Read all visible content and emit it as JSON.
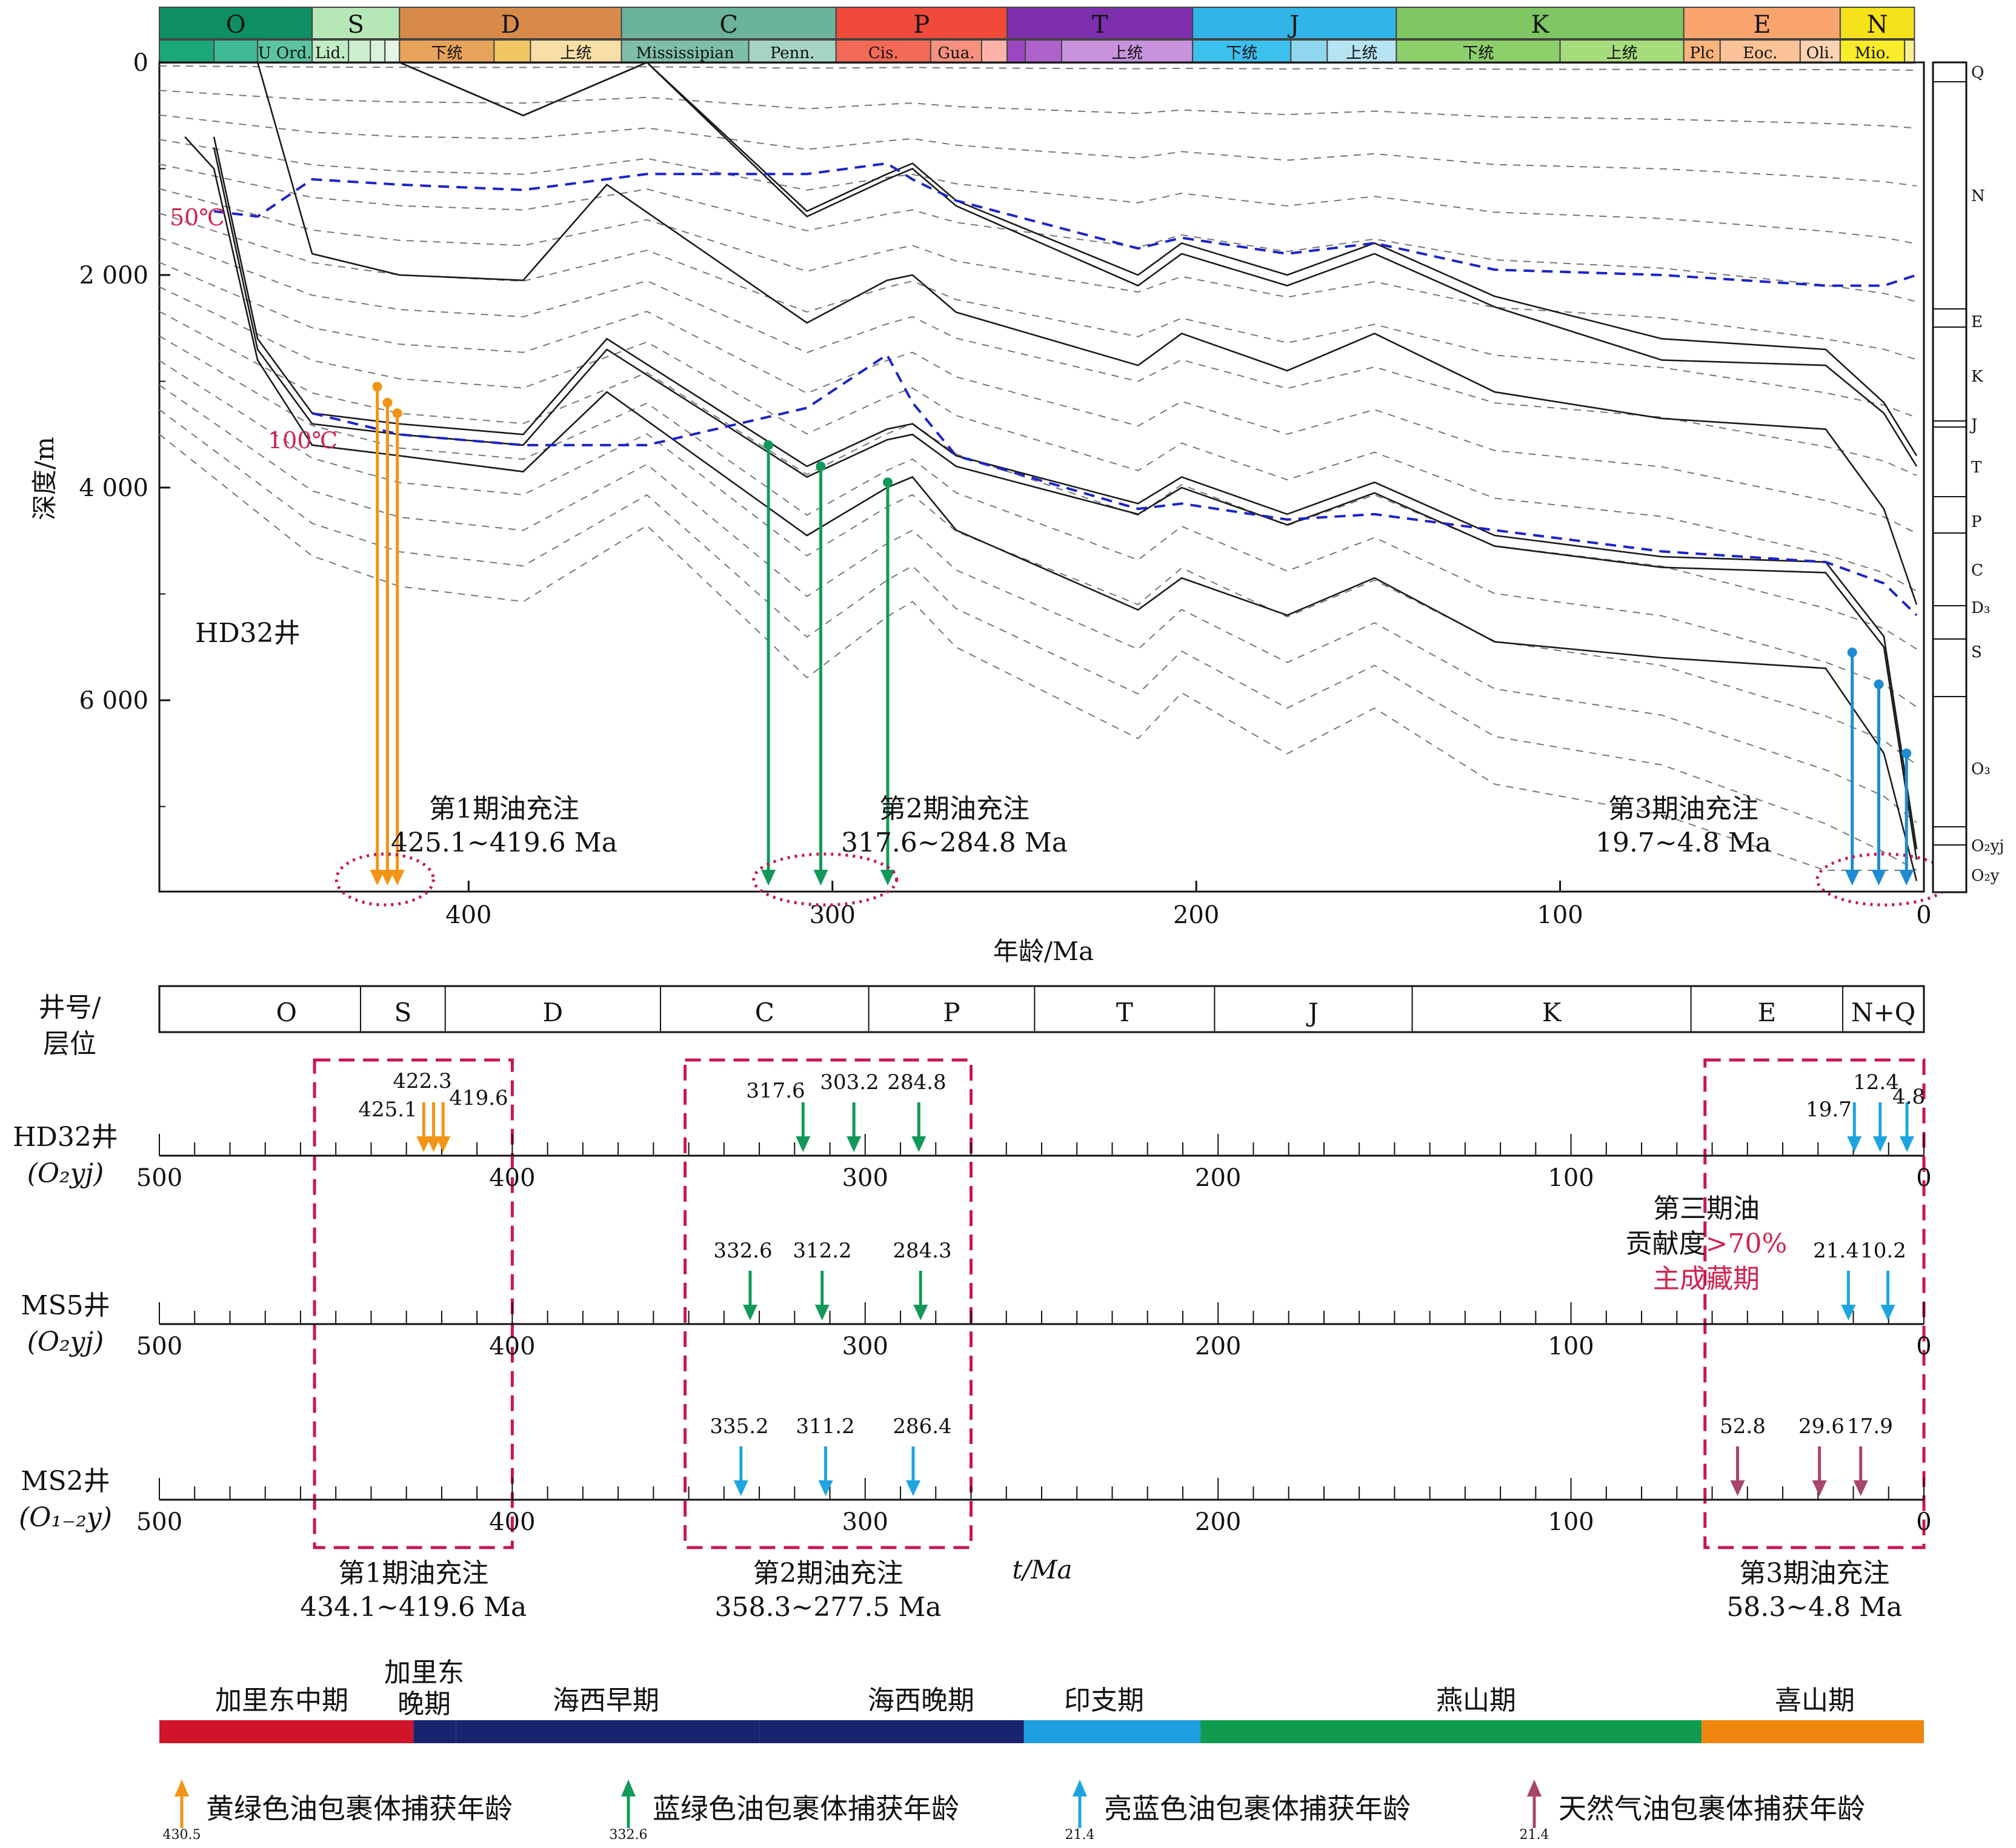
{
  "upper": {
    "periods": [
      {
        "label": "O",
        "start": 485,
        "end": 443,
        "color": "#0d8f62"
      },
      {
        "label": "S",
        "start": 443,
        "end": 419,
        "color": "#b6e8b7"
      },
      {
        "label": "D",
        "start": 419,
        "end": 358,
        "color": "#d88a4a"
      },
      {
        "label": "C",
        "start": 358,
        "end": 299,
        "color": "#6bb39b"
      },
      {
        "label": "P",
        "start": 299,
        "end": 252,
        "color": "#f04a3a"
      },
      {
        "label": "T",
        "start": 252,
        "end": 201,
        "color": "#7d2fad"
      },
      {
        "label": "J",
        "start": 201,
        "end": 145,
        "color": "#32b5e8"
      },
      {
        "label": "K",
        "start": 145,
        "end": 66,
        "color": "#7fc762"
      },
      {
        "label": "E",
        "start": 66,
        "end": 23,
        "color": "#f9a46c"
      },
      {
        "label": "N",
        "start": 23,
        "end": 2.6,
        "color": "#f5e21a"
      }
    ],
    "subperiods": [
      {
        "label": "",
        "start": 485,
        "end": 470,
        "color": "#1aa77a"
      },
      {
        "label": "",
        "start": 470,
        "end": 458,
        "color": "#3fb894"
      },
      {
        "label": "U Ord.",
        "start": 458,
        "end": 443,
        "color": "#5cc4a1"
      },
      {
        "label": "Lid.",
        "start": 443,
        "end": 433,
        "color": "#c2ecc4"
      },
      {
        "label": "",
        "start": 433,
        "end": 427,
        "color": "#cdefcf"
      },
      {
        "label": "",
        "start": 427,
        "end": 423,
        "color": "#d8f2da"
      },
      {
        "label": "",
        "start": 423,
        "end": 419,
        "color": "#e3f6e5"
      },
      {
        "label": "下统",
        "start": 419,
        "end": 393,
        "color": "#e8a35a"
      },
      {
        "label": "",
        "start": 393,
        "end": 383,
        "color": "#f2c763"
      },
      {
        "label": "上统",
        "start": 383,
        "end": 358,
        "color": "#f7dfa7"
      },
      {
        "label": "Mississipian",
        "start": 358,
        "end": 323,
        "color": "#7fbfa9"
      },
      {
        "label": "Penn.",
        "start": 323,
        "end": 299,
        "color": "#a6d4c4"
      },
      {
        "label": "Cis.",
        "start": 299,
        "end": 273,
        "color": "#f26a56"
      },
      {
        "label": "Gua.",
        "start": 273,
        "end": 259,
        "color": "#f7907f"
      },
      {
        "label": "",
        "start": 259,
        "end": 252,
        "color": "#fbb4a7"
      },
      {
        "label": "",
        "start": 252,
        "end": 247,
        "color": "#9c47c0"
      },
      {
        "label": "",
        "start": 247,
        "end": 237,
        "color": "#ad62cc"
      },
      {
        "label": "上统",
        "start": 237,
        "end": 201,
        "color": "#c893dc"
      },
      {
        "label": "下统",
        "start": 201,
        "end": 174,
        "color": "#3cc0ee"
      },
      {
        "label": "",
        "start": 174,
        "end": 164,
        "color": "#8ed7ef"
      },
      {
        "label": "上统",
        "start": 164,
        "end": 145,
        "color": "#b6e4f2"
      },
      {
        "label": "下统",
        "start": 145,
        "end": 100,
        "color": "#8ccf6b"
      },
      {
        "label": "上统",
        "start": 100,
        "end": 66,
        "color": "#a7dc7c"
      },
      {
        "label": "Plc",
        "start": 66,
        "end": 56,
        "color": "#fbb57b"
      },
      {
        "label": "Eoc.",
        "start": 56,
        "end": 34,
        "color": "#fcc398"
      },
      {
        "label": "Oli.",
        "start": 34,
        "end": 23,
        "color": "#fdd3b3"
      },
      {
        "label": "Mio.",
        "start": 23,
        "end": 5.3,
        "color": "#f8ec2b"
      },
      {
        "label": "",
        "start": 5.3,
        "end": 2.6,
        "color": "#f9f08f"
      }
    ],
    "y_label": "深度/m",
    "x_label": "年龄/Ma",
    "well_label": "HD32井",
    "temp_50": "50℃",
    "temp_100": "100℃",
    "charge_labels": [
      {
        "title": "第1期油充注",
        "range": "425.1~419.6 Ma"
      },
      {
        "title": "第2期油充注",
        "range": "317.6~284.8 Ma"
      },
      {
        "title": "第3期油充注",
        "range": "19.7~4.8 Ma"
      }
    ],
    "column_labels": [
      "Q",
      "N",
      "E",
      "K",
      "J",
      "T",
      "P",
      "C",
      "D₃",
      "S",
      "O₃",
      "O₂yj",
      "O₂y"
    ],
    "colors": {
      "orange": "#f29415",
      "green": "#12995a",
      "blue": "#1f8bd2",
      "temp": "#1b24c8",
      "ellipse": "#c8174f",
      "label_red": "#d0244e"
    }
  },
  "chart_data": [
    {
      "type": "line",
      "title": "",
      "xlabel": "年龄/Ma",
      "ylabel": "深度/m",
      "xlim": [
        485,
        0
      ],
      "ylim": [
        0,
        7800
      ],
      "x_ticks": [
        400,
        300,
        200,
        100,
        0
      ],
      "y_ticks": [
        0,
        2000,
        4000,
        6000
      ],
      "y_tick_labels": [
        "0",
        "2 000",
        "4 000",
        "6 000"
      ],
      "burial_curves": [
        {
          "x": [
            485,
            460,
            443,
            410,
            370,
            351,
            307,
            285,
            276,
            216,
            204,
            175,
            151,
            118,
            72,
            27,
            11,
            2
          ],
          "y": [
            0,
            0,
            0,
            0,
            0,
            0,
            0,
            0,
            0,
            0,
            0,
            0,
            0,
            0,
            0,
            0,
            0,
            0
          ]
        },
        {
          "x": [
            443,
            419,
            385,
            351,
            307,
            285,
            278,
            266,
            216,
            204,
            175,
            151,
            118,
            72,
            27,
            11,
            2
          ],
          "y": [
            0,
            0,
            500,
            0,
            1400,
            1050,
            950,
            1300,
            2000,
            1700,
            2000,
            1700,
            2200,
            2600,
            2700,
            3200,
            3700
          ]
        },
        {
          "x": [
            443,
            419,
            385,
            351,
            307,
            285,
            278,
            266,
            216,
            204,
            175,
            151,
            118,
            72,
            27,
            11,
            2
          ],
          "y": [
            0,
            0,
            500,
            0,
            1450,
            1100,
            1000,
            1350,
            2100,
            1800,
            2100,
            1800,
            2300,
            2800,
            2850,
            3300,
            3800
          ]
        },
        {
          "x": [
            458,
            443,
            419,
            385,
            362,
            307,
            285,
            278,
            266,
            216,
            204,
            175,
            151,
            118,
            72,
            27,
            11,
            2
          ],
          "y": [
            0,
            1800,
            2000,
            2050,
            1150,
            2450,
            2050,
            2000,
            2350,
            2850,
            2550,
            2900,
            2550,
            3100,
            3350,
            3450,
            4200,
            5100
          ]
        },
        {
          "x": [
            470,
            458,
            443,
            419,
            385,
            362,
            307,
            285,
            278,
            266,
            216,
            204,
            175,
            151,
            118,
            72,
            27,
            11,
            2
          ],
          "y": [
            700,
            2600,
            3300,
            3400,
            3500,
            2600,
            3800,
            3450,
            3400,
            3700,
            4150,
            3900,
            4250,
            3950,
            4450,
            4650,
            4700,
            5400,
            7400
          ]
        },
        {
          "x": [
            470,
            458,
            443,
            419,
            385,
            362,
            307,
            285,
            278,
            266,
            216,
            204,
            175,
            151,
            118,
            72,
            27,
            11,
            2
          ],
          "y": [
            800,
            2700,
            3400,
            3500,
            3600,
            2700,
            3900,
            3550,
            3500,
            3800,
            4250,
            4000,
            4350,
            4050,
            4550,
            4750,
            4800,
            5500,
            7500
          ]
        },
        {
          "x": [
            478,
            470,
            458,
            443,
            419,
            385,
            362,
            307,
            285,
            278,
            266,
            216,
            204,
            175,
            151,
            118,
            72,
            27,
            11,
            2
          ],
          "y": [
            700,
            1000,
            2800,
            3600,
            3700,
            3850,
            3100,
            4450,
            4000,
            3900,
            4400,
            5150,
            4850,
            5200,
            4850,
            5450,
            5600,
            5700,
            6500,
            7700
          ]
        }
      ],
      "isotherms": [
        {
          "name": "50℃",
          "x": [
            470,
            458,
            443,
            419,
            385,
            351,
            307,
            285,
            278,
            266,
            216,
            204,
            175,
            151,
            118,
            72,
            27,
            11,
            2
          ],
          "y": [
            1400,
            1450,
            1100,
            1150,
            1200,
            1050,
            1050,
            950,
            1100,
            1300,
            1750,
            1650,
            1800,
            1700,
            1950,
            2000,
            2100,
            2100,
            2000
          ]
        },
        {
          "name": "100℃",
          "x": [
            443,
            419,
            385,
            351,
            307,
            285,
            278,
            266,
            216,
            204,
            175,
            151,
            118,
            72,
            27,
            11,
            2
          ],
          "y": [
            3300,
            3500,
            3600,
            3600,
            3250,
            2750,
            3200,
            3700,
            4200,
            4150,
            4300,
            4250,
            4400,
            4600,
            4700,
            4900,
            5200
          ]
        }
      ],
      "charge_arrows": [
        {
          "age": 425.1,
          "from_depth": 3050,
          "color": "orange"
        },
        {
          "age": 422.3,
          "from_depth": 3200,
          "color": "orange"
        },
        {
          "age": 419.6,
          "from_depth": 3300,
          "color": "orange"
        },
        {
          "age": 317.6,
          "from_depth": 3600,
          "color": "green"
        },
        {
          "age": 303.2,
          "from_depth": 3800,
          "color": "green"
        },
        {
          "age": 284.8,
          "from_depth": 3950,
          "color": "green"
        },
        {
          "age": 19.7,
          "from_depth": 5550,
          "color": "blue"
        },
        {
          "age": 12.4,
          "from_depth": 5850,
          "color": "blue"
        },
        {
          "age": 4.8,
          "from_depth": 6500,
          "color": "blue"
        }
      ]
    },
    {
      "type": "scatter",
      "title": "",
      "xlabel": "t/Ma",
      "xlim": [
        500,
        0
      ],
      "x_ticks": [
        500,
        400,
        300,
        200,
        100,
        0
      ],
      "stratigraphy": [
        {
          "label": "O",
          "start": 485,
          "end": 443
        },
        {
          "label": "S",
          "start": 443,
          "end": 419
        },
        {
          "label": "D",
          "start": 419,
          "end": 358
        },
        {
          "label": "C",
          "start": 358,
          "end": 299
        },
        {
          "label": "P",
          "start": 299,
          "end": 252
        },
        {
          "label": "T",
          "start": 252,
          "end": 201
        },
        {
          "label": "J",
          "start": 201,
          "end": 145
        },
        {
          "label": "K",
          "start": 145,
          "end": 66
        },
        {
          "label": "E",
          "start": 66,
          "end": 23
        },
        {
          "label": "N+Q",
          "start": 23,
          "end": 0
        }
      ],
      "wells": [
        {
          "name": "HD32井",
          "layer": "(O₂yj)",
          "events": [
            {
              "age": 425.1,
              "type": "yellow-green"
            },
            {
              "age": 422.3,
              "type": "yellow-green"
            },
            {
              "age": 419.6,
              "type": "yellow-green"
            },
            {
              "age": 317.6,
              "type": "blue-green"
            },
            {
              "age": 303.2,
              "type": "blue-green"
            },
            {
              "age": 284.8,
              "type": "blue-green"
            },
            {
              "age": 19.7,
              "type": "bright-blue"
            },
            {
              "age": 12.4,
              "type": "bright-blue"
            },
            {
              "age": 4.8,
              "type": "bright-blue"
            }
          ]
        },
        {
          "name": "MS5井",
          "layer": "(O₂yj)",
          "events": [
            {
              "age": 332.6,
              "type": "blue-green"
            },
            {
              "age": 312.2,
              "type": "blue-green"
            },
            {
              "age": 284.3,
              "type": "blue-green"
            },
            {
              "age": 21.4,
              "type": "bright-blue"
            },
            {
              "age": 10.2,
              "type": "bright-blue"
            }
          ]
        },
        {
          "name": "MS2井",
          "layer": "(O₁₋₂y)",
          "events": [
            {
              "age": 335.2,
              "type": "bright-blue"
            },
            {
              "age": 311.2,
              "type": "bright-blue"
            },
            {
              "age": 286.4,
              "type": "bright-blue"
            },
            {
              "age": 52.8,
              "type": "gas"
            },
            {
              "age": 29.6,
              "type": "gas"
            },
            {
              "age": 17.9,
              "type": "gas"
            }
          ]
        }
      ],
      "charge_windows": [
        {
          "title": "第1期油充注",
          "range": "434.1~419.6 Ma",
          "start": 455,
          "end": 400
        },
        {
          "title": "第2期油充注",
          "range": "358.3~277.5 Ma",
          "start": 350,
          "end": 270
        },
        {
          "title": "第3期油充注",
          "range": "58.3~4.8 Ma",
          "start": 61,
          "end": 0
        }
      ],
      "annotation": {
        "line1": "第三期油",
        "line2a": "贡献度",
        "line2b": ">70%",
        "line3": "主成藏期"
      },
      "orogeny": [
        {
          "label": "加里东中期",
          "start": 500,
          "end": 428,
          "color": "#d0142a"
        },
        {
          "label": "加里东晚期",
          "start": 428,
          "end": 416,
          "color": "#18256e"
        },
        {
          "label": "海西早期",
          "start": 416,
          "end": 330,
          "color": "#18256e"
        },
        {
          "label": "海西晚期",
          "start": 330,
          "end": 255,
          "color": "#18256e"
        },
        {
          "label": "印支期",
          "start": 255,
          "end": 205,
          "color": "#1e9fe0"
        },
        {
          "label": "燕山期",
          "start": 205,
          "end": 63,
          "color": "#109a4d"
        },
        {
          "label": "喜山期",
          "start": 63,
          "end": 0,
          "color": "#ef860d"
        }
      ],
      "legend": [
        {
          "label": "黄绿色油包裹体捕获年龄",
          "sample": "430.5",
          "color": "#f29415"
        },
        {
          "label": "蓝绿色油包裹体捕获年龄",
          "sample": "332.6",
          "color": "#12995a"
        },
        {
          "label": "亮蓝色油包裹体捕获年龄",
          "sample": "21.4",
          "color": "#1ea5e0"
        },
        {
          "label": "天然气油包裹体捕获年龄",
          "sample": "21.4",
          "color": "#a8456b"
        }
      ]
    }
  ],
  "lower": {
    "header_label_line1": "井号/",
    "header_label_line2": "层位",
    "event_colors": {
      "yellow-green": "#f29415",
      "blue-green": "#12995a",
      "bright-blue": "#1ea5e0",
      "gas": "#a8456b"
    },
    "ellipse_color": "#c8174f"
  }
}
